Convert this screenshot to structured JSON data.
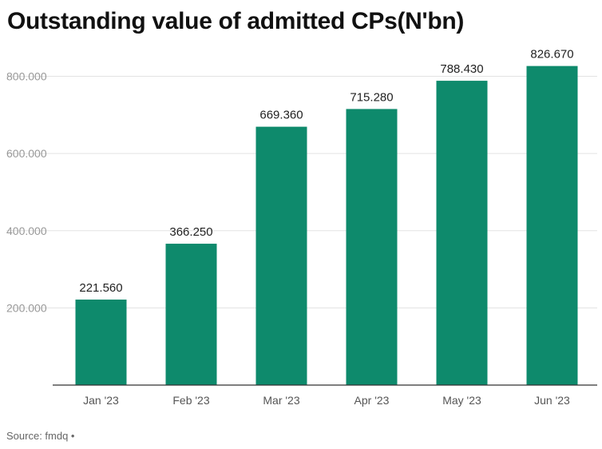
{
  "chart_data": {
    "type": "bar",
    "title": "Outstanding value of admitted CPs(N'bn)",
    "categories": [
      "Jan '23",
      "Feb '23",
      "Mar '23",
      "Apr '23",
      "May '23",
      "Jun '23"
    ],
    "values": [
      221.56,
      366.25,
      669.36,
      715.28,
      788.43,
      826.67
    ],
    "data_labels": [
      "221.560",
      "366.250",
      "669.360",
      "715.280",
      "788.430",
      "826.670"
    ],
    "yticks": [
      200,
      400,
      600,
      800
    ],
    "ytick_labels": [
      "200.000",
      "400.000",
      "600.000",
      "800.000"
    ],
    "ylim": [
      0,
      880
    ],
    "xlabel": "",
    "ylabel": "",
    "bar_color": "#0e8a6c",
    "grid": true
  },
  "footer": {
    "source": "Source: fmdq •"
  }
}
